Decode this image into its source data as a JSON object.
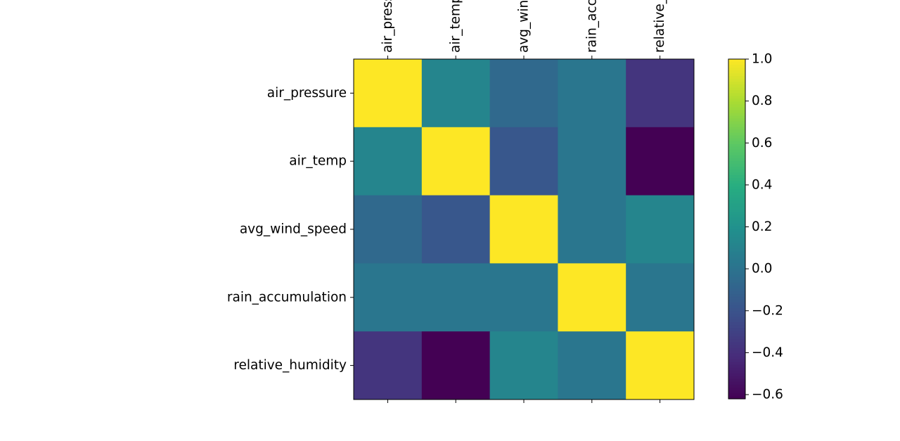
{
  "chart_data": {
    "type": "heatmap",
    "title": "",
    "xlabel": "",
    "ylabel": "",
    "row_labels": [
      "air_pressure",
      "air_temp",
      "avg_wind_speed",
      "rain_accumulation",
      "relative_humidity"
    ],
    "column_labels": [
      "air_pressure",
      "air_temp",
      "avg_wind_speed",
      "rain_accumulation",
      "relative_humidity"
    ],
    "values": [
      [
        1.0,
        0.12,
        -0.06,
        0.02,
        -0.37
      ],
      [
        0.12,
        1.0,
        -0.18,
        0.02,
        -0.62
      ],
      [
        -0.06,
        -0.18,
        1.0,
        0.02,
        0.12
      ],
      [
        0.02,
        0.02,
        0.02,
        1.0,
        0.02
      ],
      [
        -0.37,
        -0.62,
        0.12,
        0.02,
        1.0
      ]
    ],
    "colormap": "viridis",
    "colorbar": {
      "range": [
        -0.62,
        1.0
      ],
      "ticks": [
        1.0,
        0.8,
        0.6,
        0.4,
        0.2,
        0.0,
        -0.2,
        -0.4,
        -0.6
      ],
      "tick_labels": [
        "1.0",
        "0.8",
        "0.6",
        "0.4",
        "0.2",
        "0.0",
        "−0.2",
        "−0.4",
        "−0.6"
      ]
    },
    "column_labels_position": "top",
    "grid": false,
    "legend": "colorbar-right"
  }
}
